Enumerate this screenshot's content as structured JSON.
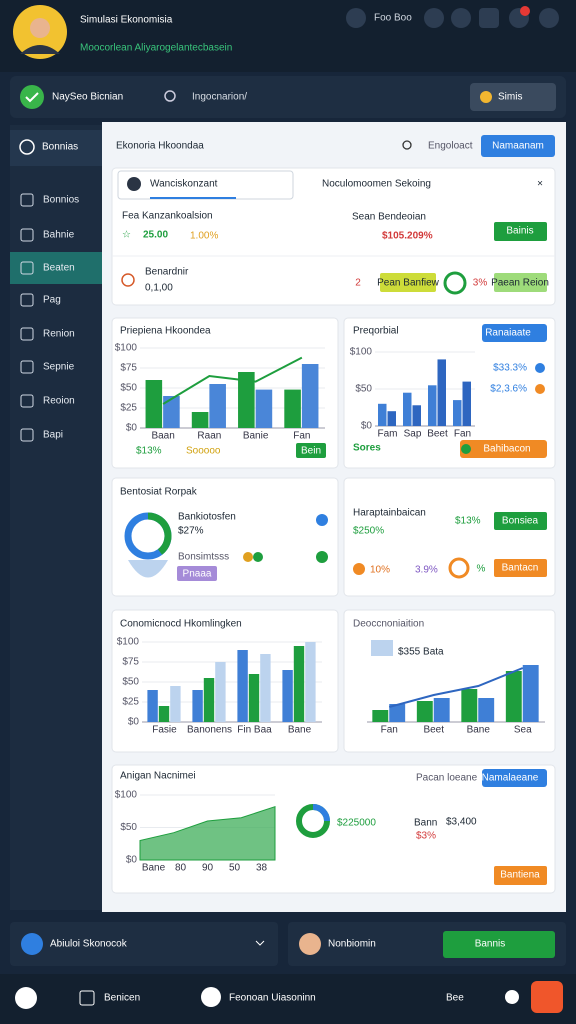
{
  "header": {
    "title": "Simulasi Ekonomisia",
    "subtitle": "Moocorlean Aliyarogelantecbasein",
    "icon_label": "Foo Boo"
  },
  "toolbar": {
    "user": "NaySeo Bicnian",
    "search": "Ingocnarion/",
    "button": "Simis"
  },
  "sidebar": {
    "heading": "Bonnias",
    "items": [
      "Bonnios",
      "Bahnie",
      "Beaten",
      "Pag",
      "Renion",
      "Sepnie",
      "Reoion",
      "Bapi"
    ]
  },
  "panel": {
    "title": "Ekonoria Hkoondaa",
    "link": "Engoloact",
    "button": "Namaanam"
  },
  "summary": {
    "tab": "Wanciskonzant",
    "heading": "Noculomoomen Sekoing",
    "metric1": {
      "label": "Fea Kanzankoalsion",
      "value": "25.00",
      "change": "1.00%"
    },
    "metric2": {
      "label": "Sean Bendeoian",
      "value": "$105.209%",
      "button": "Bainis"
    },
    "metric3": {
      "label": "Benardnir",
      "value": "0,1,00",
      "rank": "2",
      "button1": "Pean Banfiew",
      "ring": "3%",
      "button2": "Paean Reion"
    }
  },
  "chart1": {
    "title": "Priepiena Hkoondea",
    "legend": [
      "$13%",
      "Sooooo"
    ],
    "button": "Bein",
    "ylim": [
      0,
      100
    ],
    "yticks": [
      {
        "value": 0,
        "label": "$0"
      },
      {
        "value": 25,
        "label": "$25"
      },
      {
        "value": 50,
        "label": "$50"
      },
      {
        "value": 75,
        "label": "$75"
      },
      {
        "value": 100,
        "label": "$100"
      }
    ],
    "categories": [
      "Baan",
      "Raan",
      "Banie",
      "Fan"
    ],
    "bars": [
      {
        "color": "#1e9e3e",
        "values": [
          60,
          20,
          70,
          48
        ]
      },
      {
        "color": "#4a86d8",
        "values": [
          40,
          55,
          48,
          80
        ]
      }
    ],
    "line": {
      "color": "#1e9e3e",
      "values": [
        30,
        65,
        58,
        88
      ]
    }
  },
  "chart2": {
    "title": "Preqorbial",
    "dropdown": "Ranaiaate",
    "stats": [
      "$33.3%",
      "$2,3.6%"
    ],
    "footer": "Sores",
    "button": "Bahibacon",
    "ylim": [
      0,
      100
    ],
    "yticks": [
      {
        "value": 0,
        "label": "$0"
      },
      {
        "value": 50,
        "label": "$50"
      },
      {
        "value": 100,
        "label": "$100"
      }
    ],
    "categories": [
      "Fam",
      "Sap",
      "Beet",
      "Fan"
    ],
    "bars": [
      {
        "color": "#3f7fd6",
        "values": [
          30,
          45,
          55,
          35
        ]
      },
      {
        "color": "#2e66c0",
        "values": [
          20,
          28,
          90,
          60
        ]
      }
    ]
  },
  "breakdown": {
    "title": "Bentosiat Rorpak",
    "label": "Bankiotosfen",
    "value": "$27%",
    "sub": "Bonsimtsss",
    "button": "Pnaaa"
  },
  "highlights": {
    "title": "Haraptainbaican",
    "value": "$250%",
    "badge": "$13%",
    "button": "Bonsiea",
    "stat1": "10%",
    "stat2": "3.9%",
    "ring": "%",
    "button2": "Bantacn"
  },
  "chart3": {
    "title": "Conomicnocd Hkomlingken",
    "ylim": [
      0,
      100
    ],
    "yticks": [
      {
        "value": 0,
        "label": "$0"
      },
      {
        "value": 25,
        "label": "$25"
      },
      {
        "value": 50,
        "label": "$50"
      },
      {
        "value": 75,
        "label": "$75"
      },
      {
        "value": 100,
        "label": "$100"
      }
    ],
    "categories": [
      "Fasie",
      "Banonens",
      "Fin Baa",
      "Bane"
    ],
    "bars": [
      {
        "color": "#3f7fd6",
        "values": [
          40,
          40,
          90,
          65
        ]
      },
      {
        "color": "#1e9e3e",
        "values": [
          20,
          55,
          60,
          95
        ]
      },
      {
        "color": "#bcd3ee",
        "values": [
          45,
          75,
          85,
          100
        ]
      }
    ]
  },
  "chart4": {
    "title": "Deoccnoniaition",
    "legend": [
      "$355 Bata"
    ],
    "ylim": [
      0,
      100
    ],
    "categories": [
      "Fan",
      "Beet",
      "Bane",
      "Sea"
    ],
    "bars": [
      {
        "color": "#1e9e3e",
        "values": [
          20,
          35,
          55,
          85
        ]
      },
      {
        "color": "#3f7fd6",
        "values": [
          30,
          40,
          40,
          95
        ]
      }
    ],
    "line": {
      "color": "#2e66c0",
      "values": [
        25,
        45,
        60,
        90
      ]
    }
  },
  "area": {
    "title": "Anigan Nacnimei",
    "dropdown_label": "Pacan loeane",
    "dropdown": "Namalaeane",
    "value": "$225000",
    "label": "Bann",
    "amount": "$3,400",
    "change": "$3%",
    "button": "Bantiena",
    "chart": {
      "ylim": [
        0,
        100
      ],
      "yticks": [
        {
          "value": 0,
          "label": "$0"
        },
        {
          "value": 50,
          "label": "$50"
        },
        {
          "value": 100,
          "label": "$100"
        }
      ],
      "categories": [
        "Bane",
        "80",
        "90",
        "50",
        "38"
      ],
      "area": {
        "color": "#3fae5a",
        "values": [
          30,
          42,
          60,
          65,
          82
        ]
      }
    }
  },
  "bottom": {
    "select": "Abiuloi Skonocok",
    "user": "Nonbiomin",
    "button": "Bannis"
  },
  "footer": {
    "items": [
      "Benicen",
      "Feonoan Uiasoninn",
      "Bee"
    ]
  }
}
